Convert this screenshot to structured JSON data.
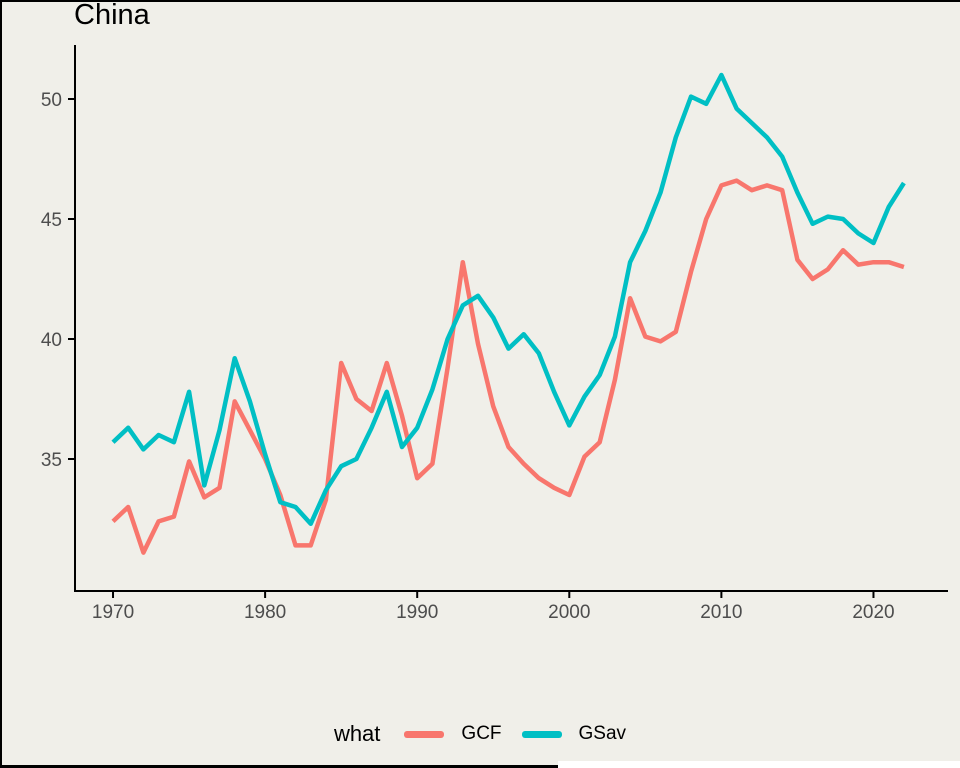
{
  "title": "China",
  "legend": {
    "title": "what",
    "items": [
      {
        "label": "GCF",
        "color": "#F8766D"
      },
      {
        "label": "GSav",
        "color": "#00BFC4"
      }
    ]
  },
  "colors": {
    "background": "#f0efe9",
    "axis_line": "#000000",
    "tick_label": "#4d4d4d",
    "title_text": "#000000"
  },
  "chart_data": {
    "type": "line",
    "title": "China",
    "xlabel": "",
    "ylabel": "",
    "grid": false,
    "legend_position": "bottom",
    "legend_title": "what",
    "x_ticks": [
      1970,
      1980,
      1990,
      2000,
      2010,
      2020
    ],
    "y_ticks": [
      35,
      40,
      45,
      50
    ],
    "xlim": [
      1967.5,
      2024.9
    ],
    "ylim": [
      29.5,
      52.25
    ],
    "x": [
      1970,
      1971,
      1972,
      1973,
      1974,
      1975,
      1976,
      1977,
      1978,
      1979,
      1980,
      1981,
      1982,
      1983,
      1984,
      1985,
      1986,
      1987,
      1988,
      1989,
      1990,
      1991,
      1992,
      1993,
      1994,
      1995,
      1996,
      1997,
      1998,
      1999,
      2000,
      2001,
      2002,
      2003,
      2004,
      2005,
      2006,
      2007,
      2008,
      2009,
      2010,
      2011,
      2012,
      2013,
      2014,
      2015,
      2016,
      2017,
      2018,
      2019,
      2020,
      2021,
      2022
    ],
    "series": [
      {
        "name": "GCF",
        "color": "#F8766D",
        "values": [
          32.4,
          33.0,
          31.1,
          32.4,
          32.6,
          34.9,
          33.4,
          33.8,
          37.4,
          36.2,
          35.0,
          33.5,
          31.4,
          31.4,
          33.3,
          39.0,
          37.5,
          37.0,
          39.0,
          36.8,
          34.2,
          34.8,
          38.8,
          43.2,
          39.8,
          37.2,
          35.5,
          34.8,
          34.2,
          33.8,
          33.5,
          35.1,
          35.7,
          38.3,
          41.7,
          40.1,
          39.9,
          40.3,
          42.8,
          45.0,
          46.4,
          46.6,
          46.2,
          46.4,
          46.2,
          43.3,
          42.5,
          42.9,
          43.7,
          43.1,
          43.2,
          43.2,
          43.0
        ]
      },
      {
        "name": "GSav",
        "color": "#00BFC4",
        "values": [
          35.7,
          36.3,
          35.4,
          36.0,
          35.7,
          37.8,
          33.9,
          36.2,
          39.2,
          37.4,
          35.2,
          33.2,
          33.0,
          32.3,
          33.7,
          34.7,
          35.0,
          36.3,
          37.8,
          35.5,
          36.3,
          37.9,
          40.0,
          41.4,
          41.8,
          40.9,
          39.6,
          40.2,
          39.4,
          37.8,
          36.4,
          37.6,
          38.5,
          40.1,
          43.2,
          44.5,
          46.1,
          48.4,
          50.1,
          49.8,
          51.0,
          49.6,
          49.0,
          48.4,
          47.6,
          46.1,
          44.8,
          45.1,
          45.0,
          44.4,
          44.0,
          45.5,
          46.5
        ]
      }
    ]
  }
}
